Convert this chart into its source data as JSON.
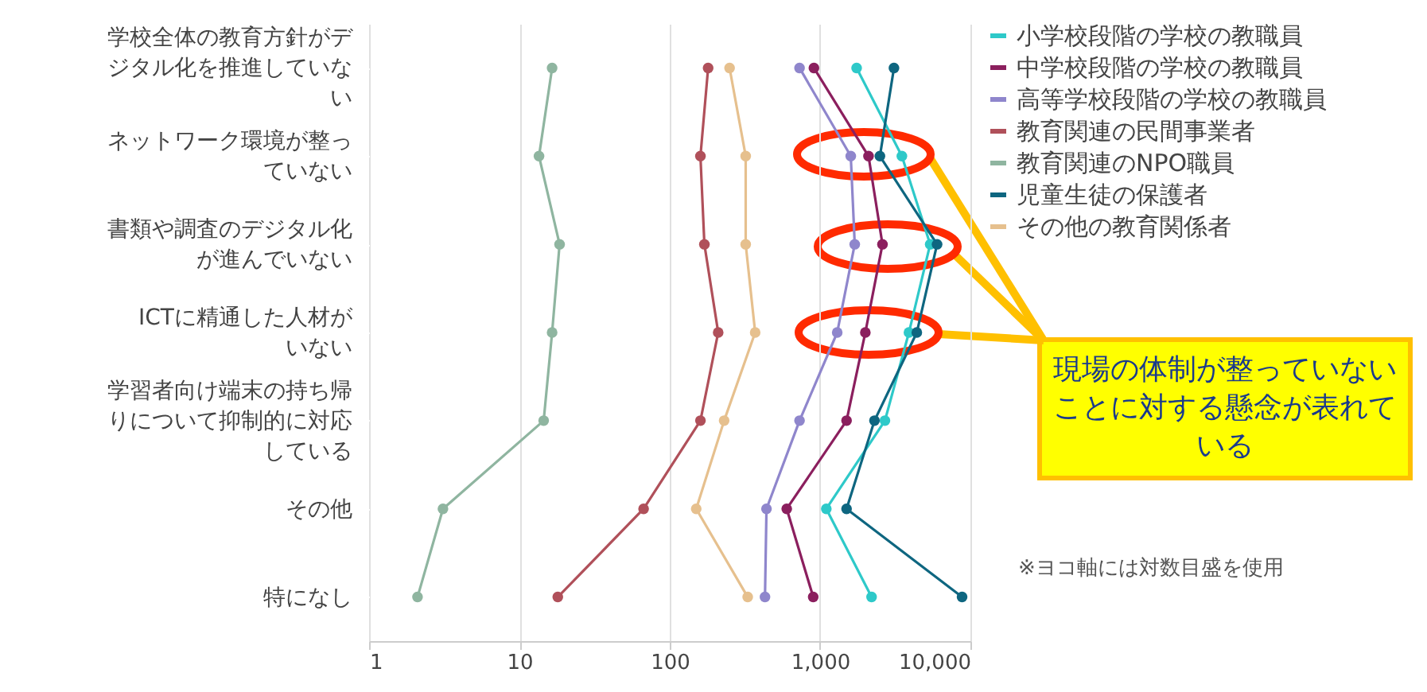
{
  "chart_data": {
    "type": "line",
    "orientation": "horizontal",
    "log": "x",
    "xlim": [
      1,
      10000
    ],
    "xticks": [
      1,
      10,
      100,
      {
        "value": 1000,
        "label": "1,000"
      },
      {
        "value": 10000,
        "label": "10,000"
      }
    ],
    "grid": "x",
    "legend": "right",
    "marker": "circle",
    "line_style": "solid",
    "categories": [
      "学校全体の教育方針がデジタル化を推進していない",
      "ネットワーク環境が整っていない",
      "書類や調査のデジタル化が進んでいない",
      "ICTに精通した人材がいない",
      "学習者向け端末の持ち帰りについて抑制的に対応している",
      "その他",
      "特になし"
    ],
    "series": [
      {
        "name": "小学校段階の学校の教職員",
        "color": "#2ec9c9",
        "values": [
          1750,
          3500,
          5400,
          3900,
          2700,
          1100,
          2200
        ]
      },
      {
        "name": "中学校段階の学校の教職員",
        "color": "#8b1f5e",
        "values": [
          910,
          2100,
          2600,
          2000,
          1500,
          600,
          900
        ]
      },
      {
        "name": "高等学校段階の学校の教職員",
        "color": "#8f86cc",
        "values": [
          730,
          1600,
          1700,
          1300,
          730,
          440,
          430
        ]
      },
      {
        "name": "教育関連の民間事業者",
        "color": "#b0505a",
        "values": [
          180,
          160,
          170,
          210,
          160,
          67,
          18
        ]
      },
      {
        "name": "教育関連のNPO職員",
        "color": "#8fb5a0",
        "values": [
          16.5,
          13.5,
          18.5,
          16.5,
          14.5,
          3.1,
          2.1
        ]
      },
      {
        "name": "児童生徒の保護者",
        "color": "#0e6680",
        "values": [
          3100,
          2500,
          6000,
          4400,
          2300,
          1500,
          8800
        ]
      },
      {
        "name": "その他の教育関係者",
        "color": "#e6c08e",
        "values": [
          250,
          320,
          320,
          370,
          230,
          150,
          330
        ]
      }
    ],
    "annotations": [
      "現場の体制が整っていないことに対する懸念が表れている",
      "※ヨコ軸には対数目盛を使用"
    ]
  }
}
